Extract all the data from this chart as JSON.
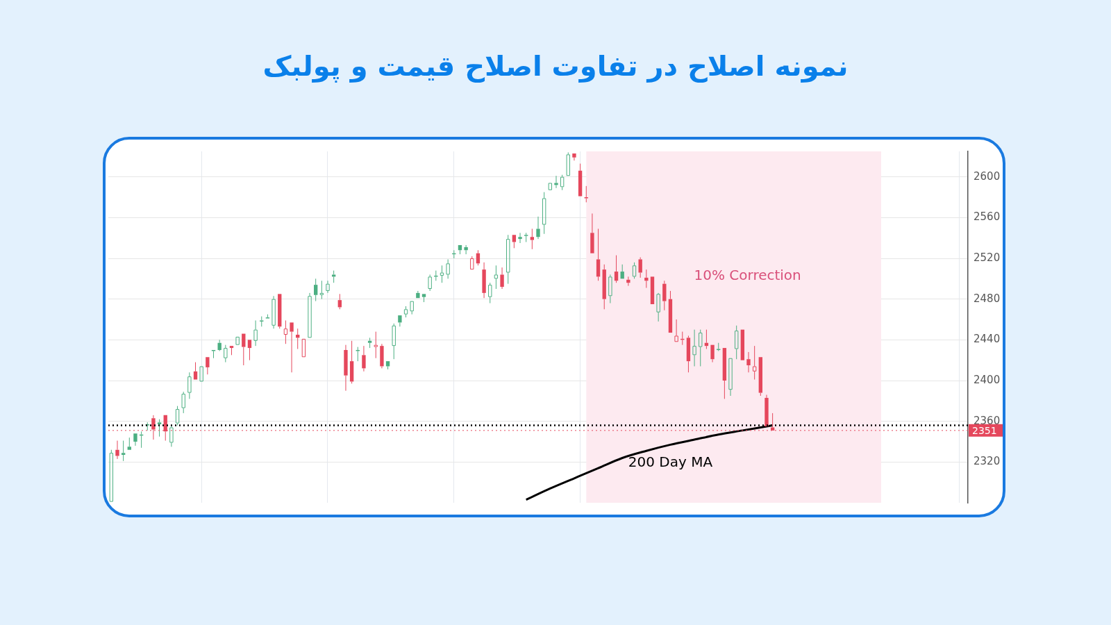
{
  "chart_data": {
    "type": "candlestick",
    "title": "نمونه اصلاح در تفاوت اصلاح قیمت و پولبک",
    "categories": [
      null,
      null,
      null,
      null,
      null,
      null,
      null,
      null,
      null,
      null,
      null,
      null,
      null,
      null,
      null,
      null,
      null,
      null,
      null,
      null,
      null,
      null,
      null,
      null,
      null,
      null,
      null,
      null,
      null,
      null,
      null,
      null,
      null,
      null,
      null,
      null,
      null,
      null,
      null,
      null,
      null,
      null,
      null,
      null,
      null,
      null,
      null,
      null,
      null,
      null,
      null,
      null,
      null,
      null,
      null,
      null,
      null,
      null,
      null,
      null,
      null,
      null,
      null,
      null,
      null,
      null,
      null,
      null,
      null,
      null,
      null,
      null,
      null,
      null,
      null,
      null,
      null,
      null,
      null,
      null,
      null,
      null,
      null,
      null,
      null,
      null,
      null,
      null,
      null,
      null,
      null,
      null,
      null,
      null,
      null,
      null,
      null,
      null,
      null,
      null,
      null,
      null,
      null,
      null,
      null,
      null,
      null,
      null,
      null,
      null,
      null,
      null,
      null,
      null,
      null,
      null,
      null,
      null,
      null,
      null,
      null,
      null,
      null,
      null,
      null,
      null,
      null,
      null,
      null,
      null,
      null,
      null,
      null,
      null,
      null,
      null,
      null,
      null,
      null,
      null,
      null,
      null,
      null
    ],
    "ohlc": [
      [
        2281,
        2332,
        2281,
        2329
      ],
      [
        2332,
        2341,
        2323,
        2326
      ],
      [
        2329,
        2341,
        2321,
        2327
      ],
      [
        2335,
        2344,
        2332,
        2332
      ],
      [
        2348,
        2348,
        2336,
        2340
      ],
      [
        2347,
        2350,
        2334,
        2346
      ],
      [
        2357,
        2359,
        2351,
        2356
      ],
      [
        2363,
        2366,
        2342,
        2352
      ],
      [
        2359,
        2362,
        2345,
        2357
      ],
      [
        2366,
        2366,
        2341,
        2350
      ],
      [
        2339,
        2356,
        2335,
        2354
      ],
      [
        2358,
        2375,
        2356,
        2372
      ],
      [
        2373,
        2389,
        2368,
        2387
      ],
      [
        2388,
        2408,
        2382,
        2404
      ],
      [
        2409,
        2418,
        2401,
        2401
      ],
      [
        2399,
        2414,
        2399,
        2414
      ],
      [
        2423,
        2423,
        2406,
        2413
      ],
      [
        2430,
        2430,
        2422,
        2429
      ],
      [
        2437,
        2440,
        2429,
        2430
      ],
      [
        2422,
        2435,
        2418,
        2432
      ],
      [
        2434,
        2434,
        2425,
        2432
      ],
      [
        2435,
        2443,
        2435,
        2443
      ],
      [
        2446,
        2446,
        2415,
        2433
      ],
      [
        2440,
        2440,
        2420,
        2432
      ],
      [
        2439,
        2459,
        2434,
        2450
      ],
      [
        2459,
        2463,
        2453,
        2458
      ],
      [
        2462,
        2465,
        2461,
        2461
      ],
      [
        2454,
        2483,
        2451,
        2480
      ],
      [
        2485,
        2485,
        2451,
        2453
      ],
      [
        2445,
        2459,
        2436,
        2451
      ],
      [
        2457,
        2457,
        2408,
        2448
      ],
      [
        2445,
        2451,
        2431,
        2442
      ],
      [
        2423,
        2441,
        2423,
        2441
      ],
      [
        2442,
        2486,
        2442,
        2483
      ],
      [
        2494,
        2500,
        2478,
        2484
      ],
      [
        2484,
        2498,
        2480,
        2486
      ],
      [
        2488,
        2498,
        2486,
        2495
      ],
      [
        2504,
        2508,
        2496,
        2502
      ],
      [
        2479,
        2485,
        2470,
        2472
      ],
      [
        2430,
        2435,
        2390,
        2405
      ],
      [
        2419,
        2439,
        2397,
        2399
      ],
      [
        2430,
        2433,
        2419,
        2429
      ],
      [
        2425,
        2434,
        2409,
        2412
      ],
      [
        2439,
        2442,
        2432,
        2437
      ],
      [
        2433,
        2448,
        2422,
        2435
      ],
      [
        2434,
        2436,
        2412,
        2414
      ],
      [
        2419,
        2419,
        2411,
        2414
      ],
      [
        2434,
        2456,
        2421,
        2454
      ],
      [
        2464,
        2464,
        2453,
        2457
      ],
      [
        2465,
        2473,
        2462,
        2470
      ],
      [
        2468,
        2478,
        2465,
        2478
      ],
      [
        2486,
        2488,
        2481,
        2481
      ],
      [
        2485,
        2485,
        2477,
        2482
      ],
      [
        2490,
        2504,
        2488,
        2502
      ],
      [
        2503,
        2508,
        2498,
        2502
      ],
      [
        2503,
        2513,
        2496,
        2506
      ],
      [
        2504,
        2519,
        2500,
        2515
      ],
      [
        2525,
        2528,
        2520,
        2524
      ],
      [
        2533,
        2533,
        2524,
        2528
      ],
      [
        2531,
        2533,
        2524,
        2528
      ],
      [
        2509,
        2522,
        2509,
        2520
      ],
      [
        2525,
        2528,
        2513,
        2515
      ],
      [
        2509,
        2516,
        2481,
        2486
      ],
      [
        2482,
        2496,
        2476,
        2494
      ],
      [
        2500,
        2513,
        2490,
        2504
      ],
      [
        2504,
        2511,
        2490,
        2492
      ],
      [
        2506,
        2543,
        2495,
        2539
      ],
      [
        2543,
        2543,
        2530,
        2536
      ],
      [
        2541,
        2545,
        2535,
        2539
      ],
      [
        2543,
        2545,
        2536,
        2542
      ],
      [
        2541,
        2549,
        2529,
        2538
      ],
      [
        2549,
        2561,
        2539,
        2541
      ],
      [
        2553,
        2585,
        2544,
        2579
      ],
      [
        2587,
        2594,
        2587,
        2594
      ],
      [
        2594,
        2601,
        2589,
        2592
      ],
      [
        2590,
        2602,
        2587,
        2600
      ],
      [
        2601,
        2624,
        2601,
        2622
      ],
      [
        2623,
        2623,
        2616,
        2619
      ],
      [
        2606,
        2613,
        2581,
        2581
      ],
      [
        2580,
        2591,
        2575,
        2579
      ],
      [
        2545,
        2564,
        2525,
        2525
      ],
      [
        2519,
        2549,
        2498,
        2502
      ],
      [
        2509,
        2514,
        2470,
        2480
      ],
      [
        2483,
        2504,
        2476,
        2502
      ],
      [
        2507,
        2523,
        2496,
        2498
      ],
      [
        2507,
        2514,
        2500,
        2500
      ],
      [
        2499,
        2502,
        2493,
        2496
      ],
      [
        2502,
        2516,
        2500,
        2513
      ],
      [
        2519,
        2521,
        2501,
        2506
      ],
      [
        2501,
        2509,
        2491,
        2498
      ],
      [
        2502,
        2502,
        2475,
        2475
      ],
      [
        2467,
        2486,
        2458,
        2485
      ],
      [
        2495,
        2498,
        2469,
        2478
      ],
      [
        2480,
        2488,
        2447,
        2447
      ],
      [
        2438,
        2460,
        2438,
        2444
      ],
      [
        2441,
        2448,
        2435,
        2440
      ],
      [
        2442,
        2444,
        2408,
        2419
      ],
      [
        2425,
        2450,
        2414,
        2434
      ],
      [
        2433,
        2450,
        2414,
        2447
      ],
      [
        2437,
        2450,
        2431,
        2434
      ],
      [
        2435,
        2435,
        2418,
        2421
      ],
      [
        2431,
        2437,
        2429,
        2430
      ],
      [
        2432,
        2432,
        2382,
        2400
      ],
      [
        2391,
        2422,
        2385,
        2422
      ],
      [
        2431,
        2454,
        2421,
        2449
      ],
      [
        2450,
        2450,
        2420,
        2420
      ],
      [
        2421,
        2428,
        2408,
        2415
      ],
      [
        2409,
        2434,
        2401,
        2414
      ],
      [
        2423,
        2423,
        2385,
        2388
      ],
      [
        2383,
        2386,
        2355,
        2355
      ],
      [
        2354,
        2368,
        2351,
        2351
      ],
      null,
      null,
      null,
      null,
      null,
      null,
      null,
      null,
      null,
      null,
      null,
      null,
      null,
      null,
      null,
      null,
      null,
      null,
      null,
      null,
      null,
      null,
      null,
      null,
      null,
      null,
      null,
      null,
      null,
      null,
      null,
      null
    ],
    "colors": [
      "#4caf82",
      "#e5475c",
      "#4caf82",
      "#4caf82",
      "#4caf82",
      "#4caf82",
      "#4caf82",
      "#e5475c",
      "#4caf82",
      "#e5475c",
      "#4caf82",
      "#4caf82",
      "#4caf82",
      "#4caf82",
      "#e5475c",
      "#4caf82",
      "#e5475c",
      "#4caf82",
      "#4caf82",
      "#4caf82",
      "#e5475c",
      "#4caf82",
      "#e5475c",
      "#e5475c",
      "#4caf82",
      "#4caf82",
      "#4caf82",
      "#4caf82",
      "#e5475c",
      "#e5475c",
      "#e5475c",
      "#e5475c",
      "#e5475c",
      "#4caf82",
      "#4caf82",
      "#4caf82",
      "#4caf82",
      "#4caf82",
      "#e5475c",
      "#e5475c",
      "#e5475c",
      "#4caf82",
      "#e5475c",
      "#4caf82",
      "#e5475c",
      "#e5475c",
      "#4caf82",
      "#4caf82",
      "#4caf82",
      "#4caf82",
      "#4caf82",
      "#4caf82",
      "#4caf82",
      "#4caf82",
      "#4caf82",
      "#4caf82",
      "#4caf82",
      "#4caf82",
      "#4caf82",
      "#4caf82",
      "#e5475c",
      "#e5475c",
      "#e5475c",
      "#4caf82",
      "#4caf82",
      "#e5475c",
      "#4caf82",
      "#e5475c",
      "#4caf82",
      "#4caf82",
      "#e5475c",
      "#4caf82",
      "#4caf82",
      "#4caf82",
      "#4caf82",
      "#4caf82",
      "#4caf82",
      "#e5475c",
      "#e5475c",
      "#e5475c",
      "#e5475c",
      "#e5475c",
      "#e5475c",
      "#4caf82",
      "#e5475c",
      "#4caf82",
      "#e5475c",
      "#4caf82",
      "#e5475c",
      "#e5475c",
      "#e5475c",
      "#4caf82",
      "#e5475c",
      "#e5475c",
      "#e5475c",
      "#e5475c",
      "#e5475c",
      "#4caf82",
      "#4caf82",
      "#e5475c",
      "#e5475c",
      "#4caf82",
      "#e5475c",
      "#4caf82",
      "#4caf82",
      "#e5475c",
      "#e5475c",
      "#e5475c",
      "#e5475c",
      "#e5475c",
      "#e5475c",
      null,
      null,
      null,
      null,
      null,
      null,
      null,
      null,
      null,
      null,
      null,
      null,
      null,
      null,
      null,
      null,
      null,
      null,
      null,
      null,
      null,
      null,
      null,
      null,
      null,
      null,
      null,
      null,
      null,
      null,
      null,
      null
    ],
    "series": [
      {
        "name": "200 Day MA",
        "type": "line",
        "color": "#000000",
        "values": [
          null,
          null,
          null,
          null,
          null,
          null,
          null,
          null,
          null,
          null,
          null,
          null,
          null,
          null,
          null,
          null,
          null,
          null,
          null,
          null,
          null,
          null,
          null,
          null,
          null,
          null,
          null,
          null,
          null,
          null,
          null,
          null,
          null,
          null,
          null,
          null,
          null,
          null,
          null,
          null,
          null,
          null,
          null,
          null,
          null,
          null,
          null,
          null,
          null,
          null,
          null,
          null,
          null,
          null,
          null,
          null,
          null,
          null,
          null,
          null,
          null,
          null,
          null,
          null,
          null,
          null,
          null,
          null,
          null,
          2283,
          null,
          null,
          null,
          2294,
          null,
          null,
          null,
          2304,
          null,
          null,
          null,
          2314,
          null,
          null,
          null,
          2324,
          null,
          null,
          null,
          2331,
          null,
          null,
          null,
          2337,
          null,
          null,
          null,
          2342,
          null,
          null,
          null,
          2347,
          null,
          null,
          null,
          2351,
          null,
          null,
          null,
          2355,
          2356,
          null,
          null,
          null,
          null,
          null,
          null,
          null,
          null,
          null,
          null,
          null,
          null,
          null,
          null,
          null,
          null,
          null,
          null,
          null,
          null,
          null,
          null,
          null,
          null,
          null,
          null,
          null,
          null,
          null,
          null,
          null,
          null
        ]
      }
    ],
    "ylim": [
      2280,
      2625
    ],
    "yticks": [
      2320,
      2360,
      2400,
      2440,
      2480,
      2520,
      2560,
      2600
    ],
    "ref_lines": [
      {
        "axis": "y",
        "value": 2356,
        "color": "#000000",
        "line_style": "dotted"
      },
      {
        "axis": "y",
        "value": 2351,
        "label": "2351",
        "color": "#e5475c",
        "line_style": "dotted"
      }
    ],
    "annotations": [
      "10% Correction"
    ],
    "grid": true,
    "legend": false,
    "tick_labels": "y"
  }
}
